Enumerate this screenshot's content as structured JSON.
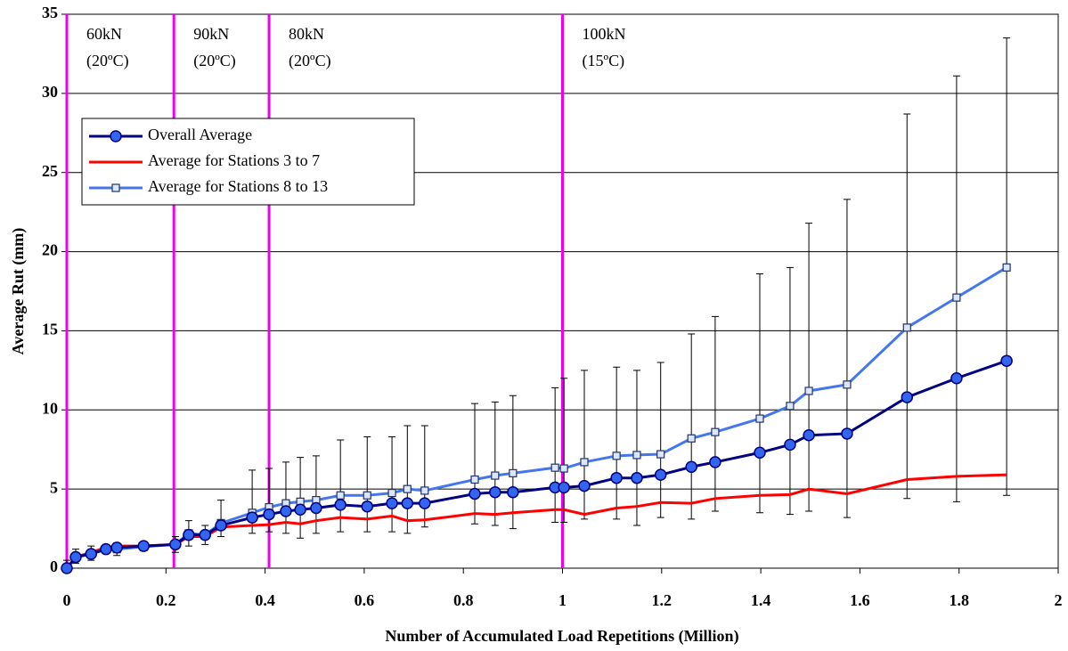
{
  "chart_data": {
    "type": "line",
    "x_label": "Number of Accumulated Load Repetitions (Million)",
    "y_label": "Average Rut (mm)",
    "xlim": [
      0,
      2
    ],
    "ylim": [
      0,
      35
    ],
    "xticks": [
      0,
      0.2,
      0.4,
      0.6,
      0.8,
      1,
      1.2,
      1.4,
      1.6,
      1.8,
      2
    ],
    "yticks": [
      0,
      5,
      10,
      15,
      20,
      25,
      30,
      35
    ],
    "grid": true,
    "x": [
      0,
      0.018,
      0.049,
      0.079,
      0.101,
      0.155,
      0.219,
      0.246,
      0.279,
      0.311,
      0.374,
      0.408,
      0.442,
      0.471,
      0.503,
      0.552,
      0.606,
      0.656,
      0.687,
      0.722,
      0.823,
      0.864,
      0.9,
      0.985,
      1.003,
      1.044,
      1.109,
      1.15,
      1.198,
      1.26,
      1.308,
      1.398,
      1.459,
      1.497,
      1.574,
      1.695,
      1.795,
      1.896
    ],
    "series": [
      {
        "name": "Overall Average",
        "color": "#000080",
        "marker": "circle",
        "marker_fill": "#3366ee",
        "values": [
          0,
          0.7,
          0.9,
          1.2,
          1.3,
          1.4,
          1.5,
          2.1,
          2.1,
          2.7,
          3.2,
          3.4,
          3.6,
          3.7,
          3.8,
          4.0,
          3.9,
          4.1,
          4.1,
          4.1,
          4.7,
          4.8,
          4.8,
          5.1,
          5.1,
          5.2,
          5.7,
          5.7,
          5.9,
          6.4,
          6.7,
          7.3,
          7.8,
          8.4,
          8.5,
          10.8,
          12.0,
          13.1
        ],
        "error_upper": [
          0.5,
          1.2,
          1.4,
          1.5,
          1.6,
          1.6,
          2.0,
          3.0,
          2.7,
          4.3,
          6.2,
          6.3,
          6.7,
          7.0,
          7.1,
          8.1,
          8.3,
          8.3,
          9.0,
          9.0,
          10.4,
          10.5,
          10.9,
          11.4,
          12.0,
          12.5,
          12.7,
          12.5,
          13.0,
          14.8,
          15.9,
          18.6,
          19.0,
          21.8,
          23.3,
          28.7,
          31.1,
          33.5
        ],
        "error_lower": [
          0,
          0.3,
          0.5,
          1.0,
          0.8,
          1.1,
          1.0,
          1.4,
          1.5,
          2.0,
          2.2,
          2.3,
          2.2,
          1.9,
          2.2,
          2.3,
          2.3,
          2.3,
          2.2,
          2.6,
          2.8,
          2.7,
          2.5,
          2.9,
          2.9,
          3.1,
          3.1,
          2.7,
          3.2,
          3.1,
          3.6,
          3.5,
          3.4,
          3.6,
          3.2,
          4.4,
          4.2,
          4.6
        ]
      },
      {
        "name": "Average for Stations 3 to 7",
        "color": "#ff0000",
        "marker": "none",
        "values": [
          0,
          0.7,
          1.0,
          1.3,
          1.4,
          1.4,
          1.5,
          2.0,
          2.0,
          2.6,
          2.7,
          2.75,
          2.9,
          2.8,
          3.0,
          3.2,
          3.1,
          3.3,
          3.0,
          3.05,
          3.45,
          3.4,
          3.5,
          3.7,
          3.7,
          3.4,
          3.8,
          3.9,
          4.15,
          4.1,
          4.4,
          4.6,
          4.65,
          5.0,
          4.7,
          5.6,
          5.8,
          5.9
        ]
      },
      {
        "name": "Average for Stations 8 to 13",
        "color": "#4477ee",
        "marker": "square",
        "marker_fill": "#dde6ff",
        "values": [
          0,
          0.7,
          0.9,
          1.2,
          1.2,
          1.35,
          1.5,
          2.2,
          2.1,
          2.85,
          3.5,
          3.85,
          4.1,
          4.2,
          4.3,
          4.6,
          4.6,
          4.75,
          5.0,
          4.9,
          5.6,
          5.85,
          6.0,
          6.35,
          6.3,
          6.7,
          7.1,
          7.15,
          7.2,
          8.2,
          8.6,
          9.45,
          10.25,
          11.2,
          11.6,
          15.2,
          17.1,
          19.0
        ]
      }
    ],
    "phase_lines": {
      "color": "#ee00ee",
      "items": [
        {
          "x": 0,
          "lines": [
            "60kN",
            "(20ºC)"
          ]
        },
        {
          "x": 0.216,
          "lines": [
            "90kN",
            "(20ºC)"
          ]
        },
        {
          "x": 0.408,
          "lines": [
            "80kN",
            "(20ºC)"
          ]
        },
        {
          "x": 1.0,
          "lines": [
            "100kN",
            "(15ºC)"
          ]
        }
      ]
    }
  }
}
